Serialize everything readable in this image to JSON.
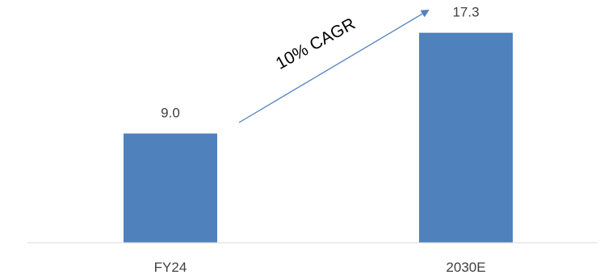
{
  "chart_data": {
    "type": "bar",
    "categories": [
      "FY24",
      "2030E"
    ],
    "values": [
      9.0,
      17.3
    ],
    "value_labels": [
      "9.0",
      "17.3"
    ],
    "title": "",
    "xlabel": "",
    "ylabel": "",
    "ylim": [
      0,
      20
    ],
    "grid": false,
    "legend": "none",
    "annotation": {
      "text": "10% CAGR",
      "type": "arrow",
      "from": "FY24",
      "to": "2030E"
    },
    "colors": {
      "bar": "#4f81bd",
      "arrow": "#4f81bd",
      "axis": "#d9d9d9",
      "label_text": "#404040",
      "annotation_text": "#000000"
    }
  }
}
